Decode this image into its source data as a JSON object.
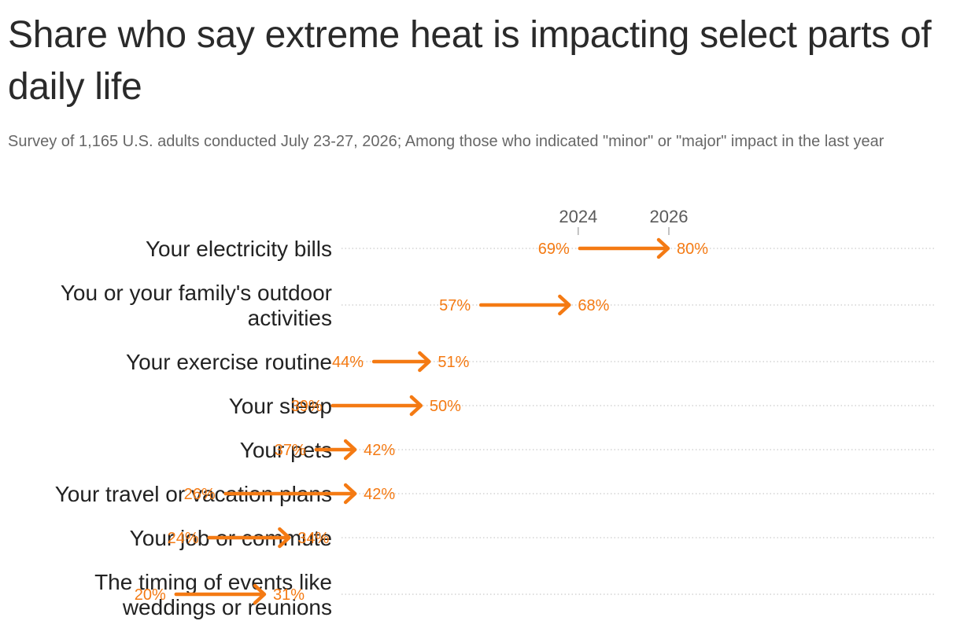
{
  "header": {
    "title": "Share who say extreme heat is impacting select parts of daily life",
    "subtitle": "Survey of 1,165 U.S. adults conducted July 23-27, 2026; Among those who indicated \"minor\" or \"major\" impact in the last year"
  },
  "colors": {
    "accent": "#f47a13",
    "dots": "#d4d4d4",
    "text": "#222222",
    "muted": "#676767"
  },
  "chart_data": {
    "type": "arrow",
    "title": "Share who say extreme heat is impacting select parts of daily life",
    "subtitle": "Survey of 1,165 U.S. adults conducted July 23-27, 2026; Among those who indicated \"minor\" or \"major\" impact in the last year",
    "from_label": "2024",
    "to_label": "2026",
    "unit": "%",
    "categories": [
      [
        "Your electricity bills"
      ],
      [
        "You or your family's outdoor",
        "activities"
      ],
      [
        "Your exercise routine"
      ],
      [
        "Your sleep"
      ],
      [
        "Your pets"
      ],
      [
        "Your travel or vacation plans"
      ],
      [
        "Your job or commute"
      ],
      [
        "The timing of events like",
        "weddings or reunions"
      ]
    ],
    "series": [
      {
        "name": "2024",
        "values": [
          69,
          57,
          44,
          39,
          37,
          26,
          24,
          20
        ]
      },
      {
        "name": "2026",
        "values": [
          80,
          68,
          51,
          50,
          42,
          42,
          34,
          31
        ]
      }
    ]
  }
}
